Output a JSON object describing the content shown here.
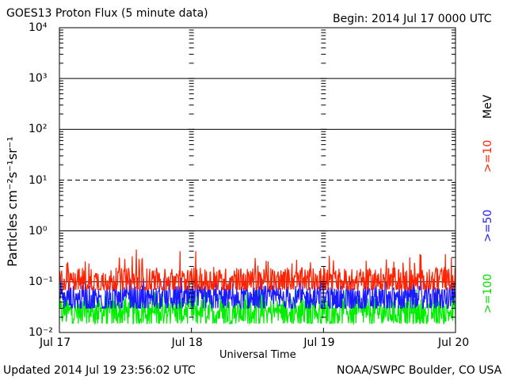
{
  "header": {
    "title": "GOES13 Proton Flux (5 minute data)",
    "begin": "Begin: 2014 Jul 17 0000 UTC"
  },
  "footer": {
    "updated": "Updated 2014 Jul 19 23:56:02 UTC",
    "credit": "NOAA/SWPC Boulder, CO USA"
  },
  "chart_data": {
    "type": "line",
    "xlabel": "Universal Time",
    "ylabel": "Particles cm⁻²s⁻¹sr⁻¹",
    "yscale": "log",
    "ylim": [
      0.01,
      10000
    ],
    "xlim": [
      "2014-07-17",
      "2014-07-20"
    ],
    "x_ticks": [
      "Jul 17",
      "Jul 18",
      "Jul 19",
      "Jul 20"
    ],
    "y_ticks": [
      "10⁻²",
      "10⁻¹",
      "10⁰",
      "10¹",
      "10²",
      "10³",
      "10⁴"
    ],
    "grid": {
      "horizontal": true,
      "style": "1e1 dashed, others solid"
    },
    "legend": {
      "placement": "right",
      "unit": "MeV"
    },
    "series": [
      {
        "name": ">=10",
        "color": "#ff2200",
        "typical_value": 0.1,
        "range": [
          0.07,
          0.4
        ],
        "peak": {
          "x": "2014-07-17T14:00",
          "y": 0.43
        }
      },
      {
        "name": ">=50",
        "color": "#1a1aff",
        "typical_value": 0.045,
        "range": [
          0.03,
          0.12
        ]
      },
      {
        "name": ">=100",
        "color": "#00ee00",
        "typical_value": 0.025,
        "range": [
          0.015,
          0.07
        ]
      }
    ]
  }
}
